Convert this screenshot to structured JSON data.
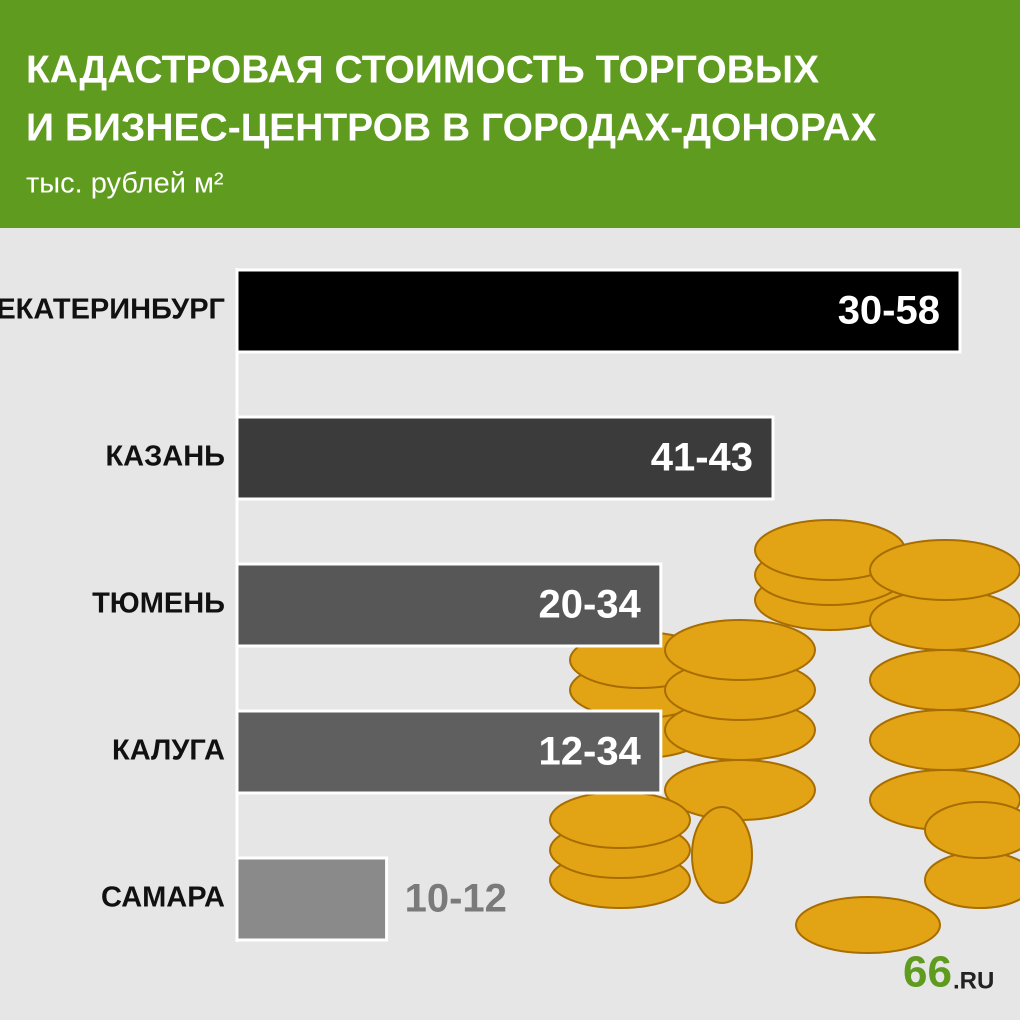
{
  "chart_data": {
    "type": "bar",
    "title_lines": [
      "КАДАСТРОВАЯ СТОИМОСТЬ ТОРГОВЫХ",
      "И БИЗНЕС-ЦЕНТРОВ В ГОРОДАХ-ДОНОРАХ"
    ],
    "subtitle": "тыс. рублей м²",
    "categories": [
      "ЕКАТЕРИНБУРГ",
      "КАЗАНЬ",
      "ТЮМЕНЬ",
      "КАЛУГА",
      "САМАРА"
    ],
    "low": [
      30,
      41,
      20,
      12,
      10
    ],
    "high": [
      58,
      43,
      34,
      34,
      12
    ],
    "value_labels": [
      "30-58",
      "41-43",
      "20-34",
      "12-34",
      "10-12"
    ],
    "colors": [
      "#000000",
      "#3b3b3b",
      "#575757",
      "#5f5f5f",
      "#8a8a8a"
    ]
  },
  "logo": {
    "number": "66",
    "suffix": ".RU"
  }
}
